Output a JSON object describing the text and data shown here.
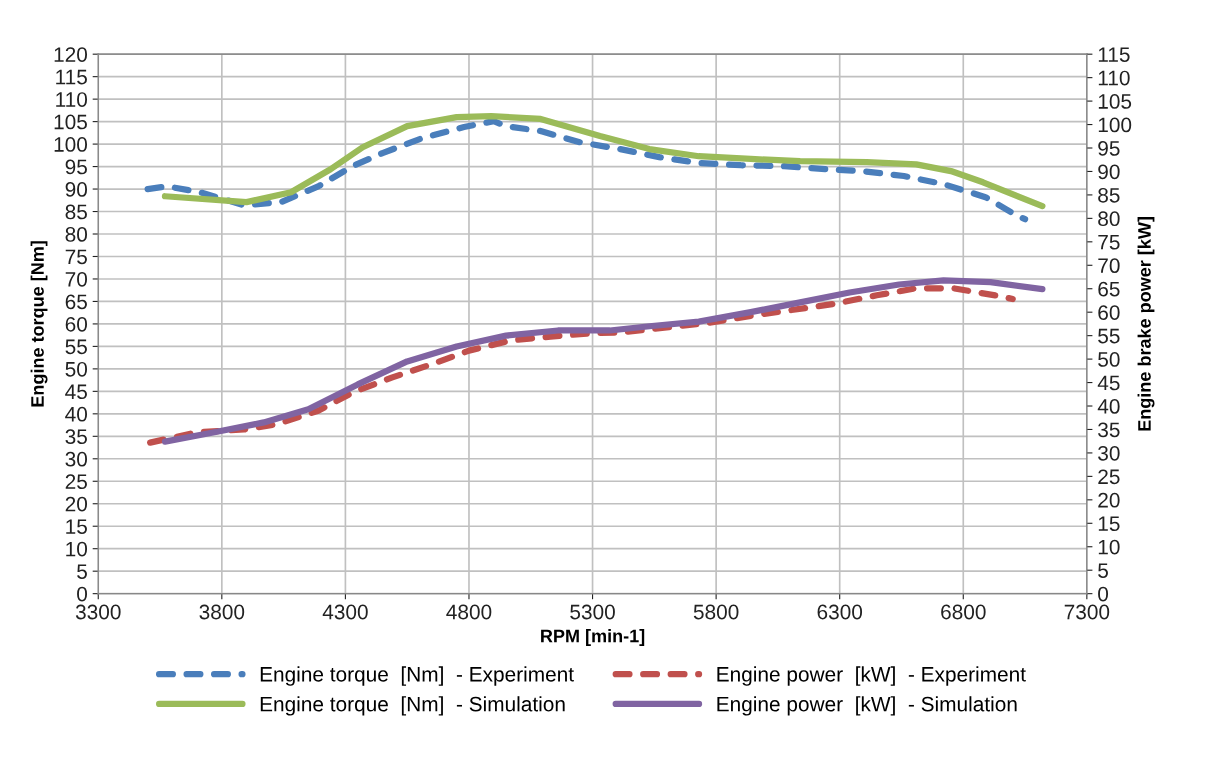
{
  "chart_data": {
    "type": "line",
    "xlabel": "RPM [min-1]",
    "ylabel": "Engine torque [Nm]",
    "y2label": "Engine brake power [kW]",
    "xlim": [
      3300,
      7300
    ],
    "xticks": [
      3300,
      3800,
      4300,
      4800,
      5300,
      5800,
      6300,
      6800,
      7300
    ],
    "ylim": [
      0,
      120
    ],
    "yticks": [
      0,
      5,
      10,
      15,
      20,
      25,
      30,
      35,
      40,
      45,
      50,
      55,
      60,
      65,
      70,
      75,
      80,
      85,
      90,
      95,
      100,
      105,
      110,
      115,
      120
    ],
    "y2lim": [
      0,
      115
    ],
    "y2ticks": [
      0,
      5,
      10,
      15,
      20,
      25,
      30,
      35,
      40,
      45,
      50,
      55,
      60,
      65,
      70,
      75,
      80,
      85,
      90,
      95,
      100,
      105,
      110,
      115
    ],
    "grid": true,
    "legend": "bottom",
    "marker": "none",
    "series": [
      {
        "name": "Engine torque  [Nm]  - Experiment",
        "color": "#4a7ebb",
        "line_style": "dashed",
        "x": [
          3500,
          3580,
          3710,
          3890,
          4040,
          4190,
          4330,
          4450,
          4610,
          4780,
          4900,
          4950,
          5090,
          5250,
          5410,
          5570,
          5730,
          5900,
          6070,
          6250,
          6390,
          6560,
          6720,
          6890,
          7020,
          7050
        ],
        "values": [
          90,
          90.6,
          89.3,
          86.4,
          87.1,
          90.6,
          95.1,
          98,
          101.3,
          103.8,
          105.1,
          104,
          102.9,
          100.4,
          98.9,
          97.1,
          95.8,
          95.3,
          95.1,
          94.4,
          94,
          92.9,
          91.1,
          88.2,
          84,
          83.3
        ]
      },
      {
        "name": "Engine torque  [Nm]  - Simulation",
        "color": "#9bbb59",
        "line_style": "solid",
        "x": [
          3570,
          3900,
          4080,
          4240,
          4370,
          4550,
          4750,
          4890,
          5090,
          5330,
          5530,
          5730,
          5940,
          6140,
          6410,
          6610,
          6750,
          6880,
          7120
        ],
        "values": [
          88.4,
          87.1,
          89.3,
          94.4,
          99.3,
          104,
          106,
          106.2,
          105.6,
          101.8,
          98.9,
          97.3,
          96.7,
          96.2,
          96,
          95.5,
          94,
          91.5,
          86.2
        ]
      },
      {
        "name": "Engine power  [kW]  - Experiment",
        "color": "#c0504d",
        "line_style": "dashed",
        "axis": "y2",
        "x": [
          3510,
          3700,
          3890,
          4020,
          4190,
          4330,
          4490,
          4660,
          4800,
          4970,
          5130,
          5290,
          5420,
          5780,
          5950,
          6270,
          6450,
          6610,
          6760,
          6950,
          7000
        ],
        "values": [
          32.2,
          34.4,
          35,
          36.1,
          39,
          42.9,
          46.1,
          49.1,
          51.8,
          54,
          54.8,
          55.5,
          55.7,
          57.8,
          59.3,
          61.7,
          63.6,
          65.1,
          65.1,
          63.4,
          62.8
        ]
      },
      {
        "name": "Engine power  [kW]  - Simulation",
        "color": "#8064a2",
        "line_style": "solid",
        "axis": "y2",
        "x": [
          3570,
          3770,
          3970,
          4150,
          4350,
          4550,
          4750,
          4950,
          5160,
          5370,
          5530,
          5730,
          5940,
          6140,
          6340,
          6540,
          6720,
          6910,
          7120
        ],
        "values": [
          32.4,
          34.4,
          36.5,
          39.3,
          44.6,
          49.5,
          52.7,
          55,
          56.1,
          56.1,
          57,
          58,
          60,
          62.1,
          64.2,
          65.9,
          66.8,
          66.4,
          64.9
        ]
      }
    ]
  }
}
